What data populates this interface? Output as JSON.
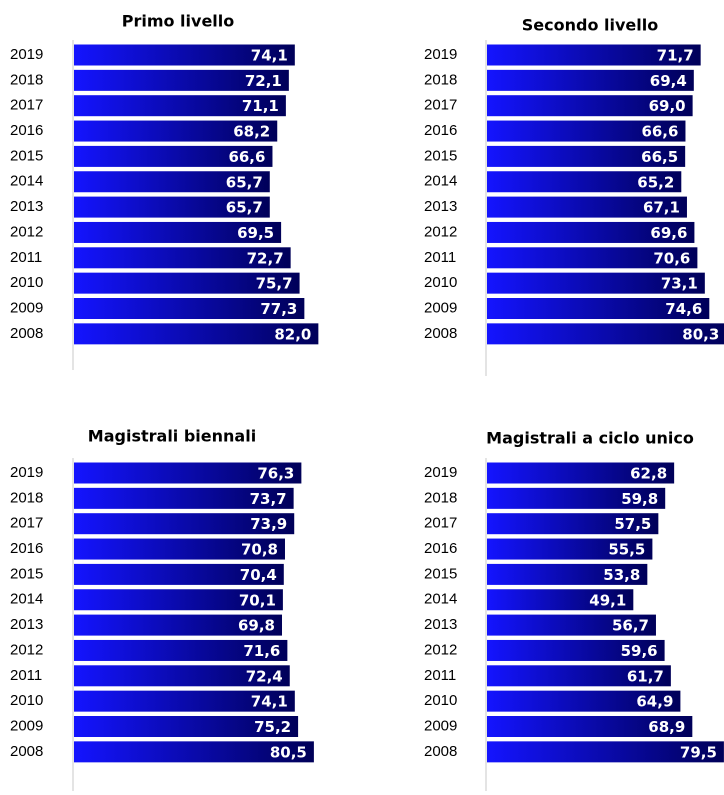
{
  "chart_data": [
    {
      "type": "bar",
      "title": "Primo livello",
      "color": "#1414ff",
      "categories": [
        "2019",
        "2018",
        "2017",
        "2016",
        "2015",
        "2014",
        "2013",
        "2012",
        "2011",
        "2010",
        "2009",
        "2008"
      ],
      "values": [
        74.1,
        72.1,
        71.1,
        68.2,
        66.6,
        65.7,
        65.7,
        69.5,
        72.7,
        75.7,
        77.3,
        82.0
      ],
      "value_labels": [
        "74,1",
        "72,1",
        "71,1",
        "68,2",
        "66,6",
        "65,7",
        "65,7",
        "69,5",
        "72,7",
        "75,7",
        "77,3",
        "82,0"
      ]
    },
    {
      "type": "bar",
      "title": "Secondo livello",
      "color": "#1414ff",
      "categories": [
        "2019",
        "2018",
        "2017",
        "2016",
        "2015",
        "2014",
        "2013",
        "2012",
        "2011",
        "2010",
        "2009",
        "2008"
      ],
      "values": [
        71.7,
        69.4,
        69.0,
        66.6,
        66.5,
        65.2,
        67.1,
        69.6,
        70.6,
        73.1,
        74.6,
        80.3
      ],
      "value_labels": [
        "71,7",
        "69,4",
        "69,0",
        "66,6",
        "66,5",
        "65,2",
        "67,1",
        "69,6",
        "70,6",
        "73,1",
        "74,6",
        "80,3"
      ]
    },
    {
      "type": "bar",
      "title": "Magistrali biennali",
      "color": "#1414ff",
      "categories": [
        "2019",
        "2018",
        "2017",
        "2016",
        "2015",
        "2014",
        "2013",
        "2012",
        "2011",
        "2010",
        "2009",
        "2008"
      ],
      "values": [
        76.3,
        73.7,
        73.9,
        70.8,
        70.4,
        70.1,
        69.8,
        71.6,
        72.4,
        74.1,
        75.2,
        80.5
      ],
      "value_labels": [
        "76,3",
        "73,7",
        "73,9",
        "70,8",
        "70,4",
        "70,1",
        "69,8",
        "71,6",
        "72,4",
        "74,1",
        "75,2",
        "80,5"
      ]
    },
    {
      "type": "bar",
      "title": "Magistrali a ciclo unico",
      "color": "#1414ff",
      "categories": [
        "2019",
        "2018",
        "2017",
        "2016",
        "2015",
        "2014",
        "2013",
        "2012",
        "2011",
        "2010",
        "2009",
        "2008"
      ],
      "values": [
        62.8,
        59.8,
        57.5,
        55.5,
        53.8,
        49.1,
        56.7,
        59.6,
        61.7,
        64.9,
        68.9,
        79.5
      ],
      "value_labels": [
        "62,8",
        "59,8",
        "57,5",
        "55,5",
        "53,8",
        "49,1",
        "56,7",
        "59,6",
        "61,7",
        "64,9",
        "68,9",
        "79,5"
      ]
    }
  ]
}
